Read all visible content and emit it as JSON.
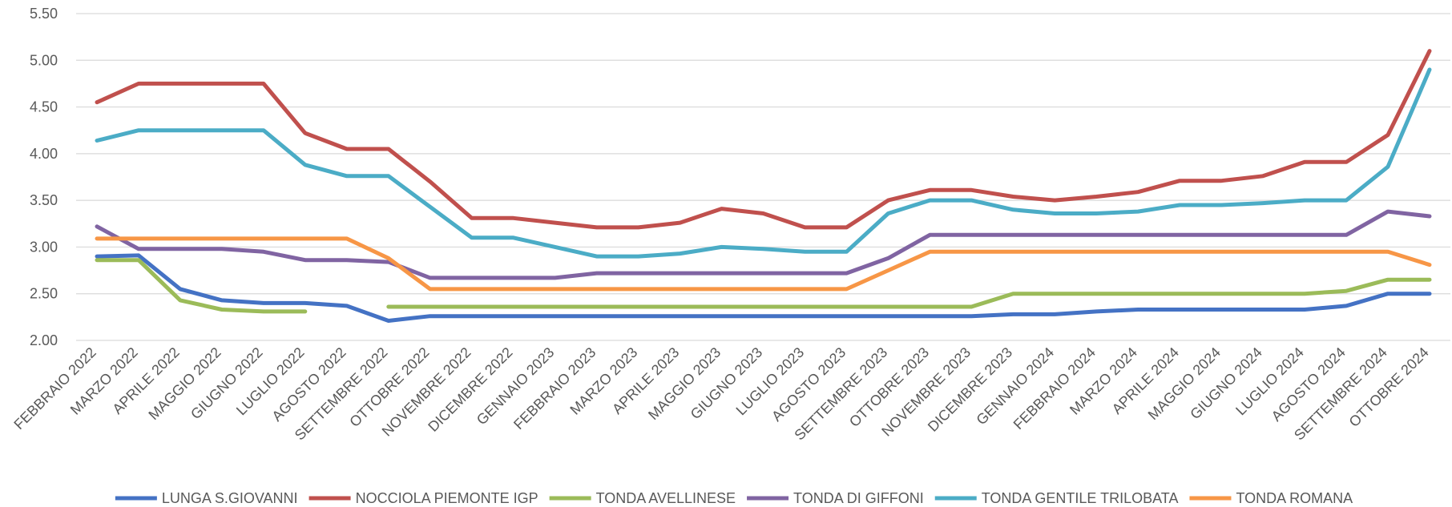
{
  "chart_data": {
    "type": "line",
    "categories": [
      "FEBBRAIO 2022",
      "MARZO 2022",
      "APRILE 2022",
      "MAGGIO 2022",
      "GIUGNO 2022",
      "LUGLIO 2022",
      "AGOSTO 2022",
      "SETTEMBRE 2022",
      "OTTOBRE 2022",
      "NOVEMBRE 2022",
      "DICEMBRE 2022",
      "GENNAIO 2023",
      "FEBBRAIO 2023",
      "MARZO 2023",
      "APRILE 2023",
      "MAGGIO 2023",
      "GIUGNO 2023",
      "LUGLIO 2023",
      "AGOSTO 2023",
      "SETTEMBRE 2023",
      "OTTOBRE 2023",
      "NOVEMBRE 2023",
      "DICEMBRE 2023",
      "GENNAIO 2024",
      "FEBBRAIO 2024",
      "MARZO 2024",
      "APRILE 2024",
      "MAGGIO 2024",
      "GIUGNO 2024",
      "LUGLIO 2024",
      "AGOSTO 2024",
      "SETTEMBRE 2024",
      "OTTOBRE 2024"
    ],
    "series": [
      {
        "name": "LUNGA S.GIOVANNI",
        "color": "#4472c4",
        "values": [
          2.9,
          2.91,
          2.55,
          2.43,
          2.4,
          2.4,
          2.37,
          2.21,
          2.26,
          2.26,
          2.26,
          2.26,
          2.26,
          2.26,
          2.26,
          2.26,
          2.26,
          2.26,
          2.26,
          2.26,
          2.26,
          2.26,
          2.28,
          2.28,
          2.31,
          2.33,
          2.33,
          2.33,
          2.33,
          2.33,
          2.37,
          2.5,
          2.5
        ]
      },
      {
        "name": "NOCCIOLA PIEMONTE IGP",
        "color": "#c0504d",
        "values": [
          4.55,
          4.75,
          4.75,
          4.75,
          4.75,
          4.22,
          4.05,
          4.05,
          3.7,
          3.31,
          3.31,
          3.26,
          3.21,
          3.21,
          3.26,
          3.41,
          3.36,
          3.21,
          3.21,
          3.5,
          3.61,
          3.61,
          3.54,
          3.5,
          3.54,
          3.59,
          3.71,
          3.71,
          3.76,
          3.91,
          3.91,
          4.2,
          5.1
        ]
      },
      {
        "name": "TONDA AVELLINESE",
        "color": "#9bbb59",
        "values": [
          2.86,
          2.86,
          2.43,
          2.33,
          2.31,
          2.31,
          null,
          2.36,
          2.36,
          2.36,
          2.36,
          2.36,
          2.36,
          2.36,
          2.36,
          2.36,
          2.36,
          2.36,
          2.36,
          2.36,
          2.36,
          2.36,
          2.5,
          2.5,
          2.5,
          2.5,
          2.5,
          2.5,
          2.5,
          2.5,
          2.53,
          2.65,
          2.65
        ]
      },
      {
        "name": "TONDA DI GIFFONI",
        "color": "#8064a2",
        "values": [
          3.22,
          2.98,
          2.98,
          2.98,
          2.95,
          2.86,
          2.86,
          2.84,
          2.67,
          2.67,
          2.67,
          2.67,
          2.72,
          2.72,
          2.72,
          2.72,
          2.72,
          2.72,
          2.72,
          2.88,
          3.13,
          3.13,
          3.13,
          3.13,
          3.13,
          3.13,
          3.13,
          3.13,
          3.13,
          3.13,
          3.13,
          3.38,
          3.33
        ]
      },
      {
        "name": "TONDA GENTILE TRILOBATA",
        "color": "#4bacc6",
        "values": [
          4.14,
          4.25,
          4.25,
          4.25,
          4.25,
          3.88,
          3.76,
          3.76,
          3.43,
          3.1,
          3.1,
          3.0,
          2.9,
          2.9,
          2.93,
          3.0,
          2.98,
          2.95,
          2.95,
          3.36,
          3.5,
          3.5,
          3.4,
          3.36,
          3.36,
          3.38,
          3.45,
          3.45,
          3.47,
          3.5,
          3.5,
          3.86,
          4.9
        ]
      },
      {
        "name": "TONDA ROMANA",
        "color": "#f79646",
        "values": [
          3.09,
          3.09,
          3.09,
          3.09,
          3.09,
          3.09,
          3.09,
          2.88,
          2.55,
          2.55,
          2.55,
          2.55,
          2.55,
          2.55,
          2.55,
          2.55,
          2.55,
          2.55,
          2.55,
          2.75,
          2.95,
          2.95,
          2.95,
          2.95,
          2.95,
          2.95,
          2.95,
          2.95,
          2.95,
          2.95,
          2.95,
          2.95,
          2.81
        ]
      }
    ],
    "ylim": [
      2,
      5.5
    ],
    "yticks": [
      {
        "value": 2,
        "label": "2.00"
      },
      {
        "value": 2.5,
        "label": "2.50"
      },
      {
        "value": 3,
        "label": "3.00"
      },
      {
        "value": 3.5,
        "label": "3.50"
      },
      {
        "value": 4,
        "label": "4.00"
      },
      {
        "value": 4.5,
        "label": "4.50"
      },
      {
        "value": 5,
        "label": "5.00"
      },
      {
        "value": 5.5,
        "label": "5.50"
      }
    ],
    "grid": true,
    "legend": "bottom"
  }
}
